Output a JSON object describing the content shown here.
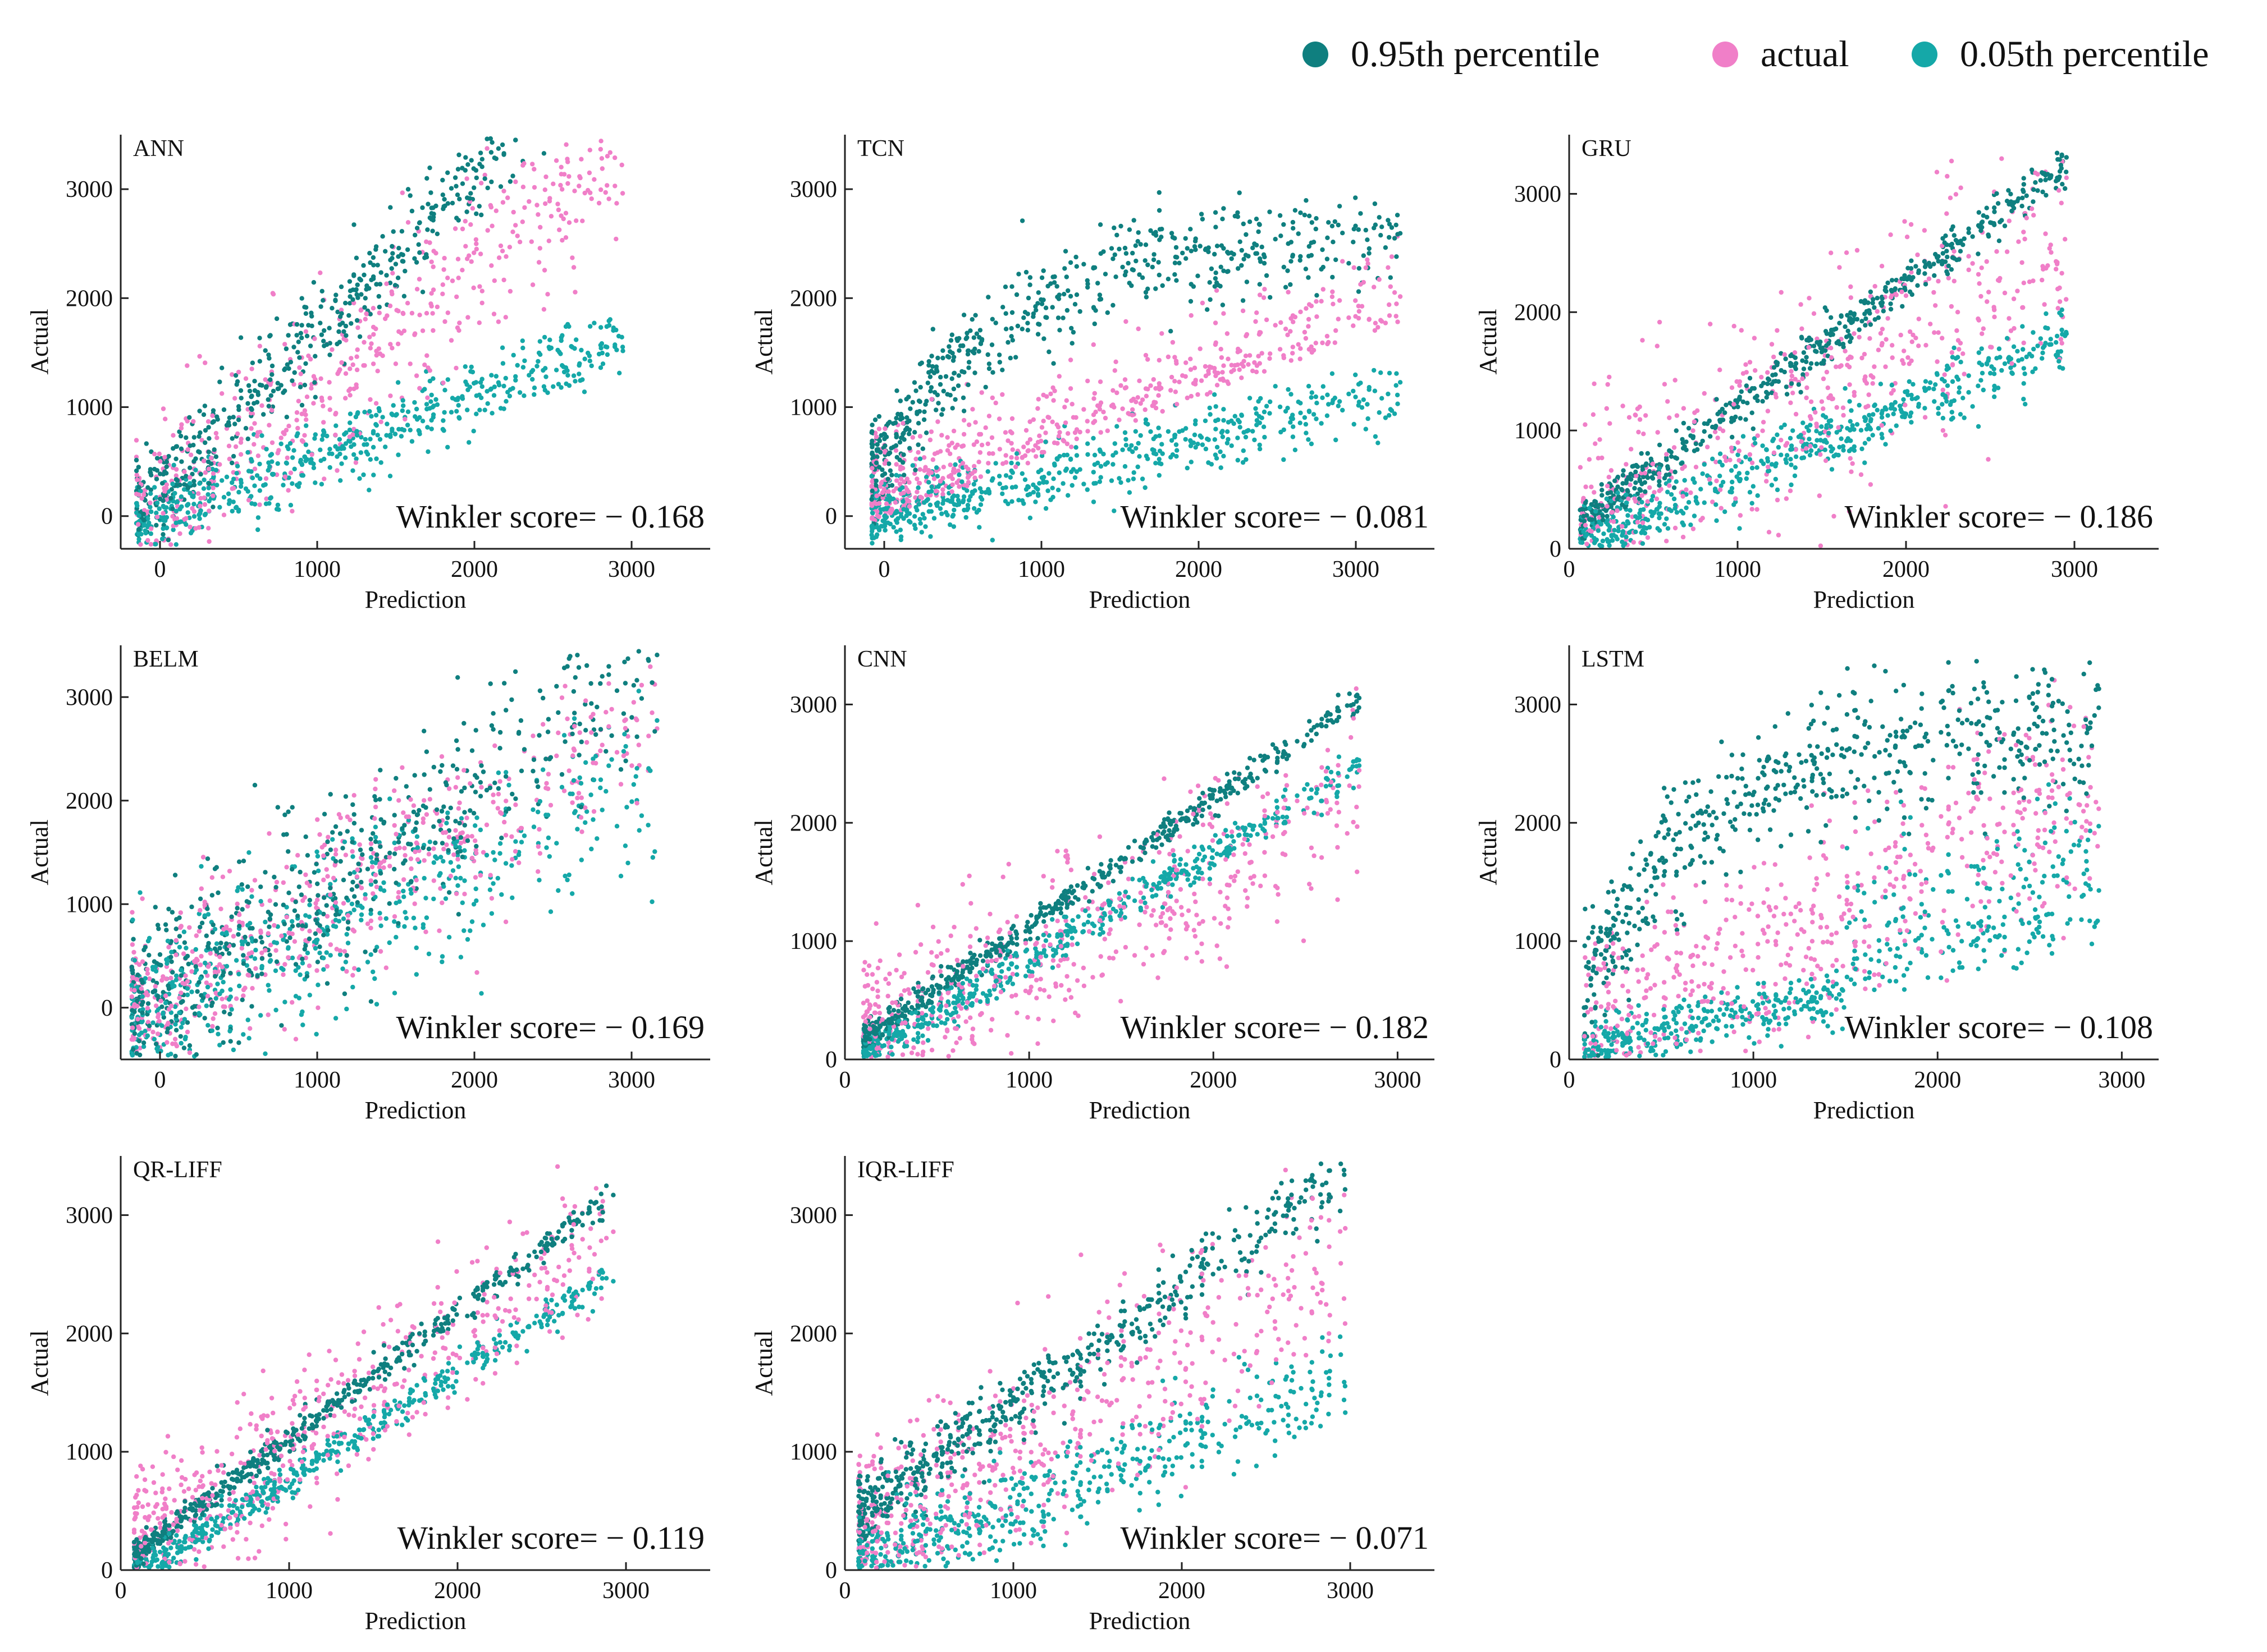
{
  "legend": {
    "items": [
      {
        "label": "0.95th percentile",
        "color": "#0f7f7f"
      },
      {
        "label": "actual",
        "color": "#f07fc8"
      },
      {
        "label": "0.05th percentile",
        "color": "#15a8a8"
      }
    ]
  },
  "chart_data": [
    {
      "type": "scatter",
      "title": "ANN",
      "xlabel": "Prediction",
      "ylabel": "Actual",
      "xlim": [
        -250,
        3500
      ],
      "ylim": [
        -300,
        3500
      ],
      "xticks": [
        0,
        1000,
        2000,
        3000
      ],
      "yticks": [
        0,
        1000,
        2000,
        3000
      ],
      "annotation": "Winkler score= − 0.168",
      "winkler_score": -0.168
    },
    {
      "type": "scatter",
      "title": "TCN",
      "xlabel": "Prediction",
      "ylabel": "Actual",
      "xlim": [
        -250,
        3500
      ],
      "ylim": [
        -300,
        3500
      ],
      "xticks": [
        0,
        1000,
        2000,
        3000
      ],
      "yticks": [
        0,
        1000,
        2000,
        3000
      ],
      "annotation": "Winkler score= − 0.081",
      "winkler_score": -0.081
    },
    {
      "type": "scatter",
      "title": "GRU",
      "xlabel": "Prediction",
      "ylabel": "Actual",
      "xlim": [
        0,
        3500
      ],
      "ylim": [
        0,
        3500
      ],
      "xticks": [
        0,
        1000,
        2000,
        3000
      ],
      "yticks": [
        0,
        1000,
        2000,
        3000
      ],
      "annotation": "Winkler score= − 0.186",
      "winkler_score": -0.186
    },
    {
      "type": "scatter",
      "title": "BELM",
      "xlabel": "Prediction",
      "ylabel": "Actual",
      "xlim": [
        -250,
        3500
      ],
      "ylim": [
        -500,
        3500
      ],
      "xticks": [
        0,
        1000,
        2000,
        3000
      ],
      "yticks": [
        0,
        1000,
        2000,
        3000
      ],
      "annotation": "Winkler score= − 0.169",
      "winkler_score": -0.169
    },
    {
      "type": "scatter",
      "title": "CNN",
      "xlabel": "Prediction",
      "ylabel": "Actual",
      "xlim": [
        0,
        3200
      ],
      "ylim": [
        0,
        3500
      ],
      "xticks": [
        0,
        1000,
        2000,
        3000
      ],
      "yticks": [
        0,
        1000,
        2000,
        3000
      ],
      "annotation": "Winkler score= − 0.182",
      "winkler_score": -0.182
    },
    {
      "type": "scatter",
      "title": "LSTM",
      "xlabel": "Prediction",
      "ylabel": "Actual",
      "xlim": [
        0,
        3200
      ],
      "ylim": [
        0,
        3500
      ],
      "xticks": [
        0,
        1000,
        2000,
        3000
      ],
      "yticks": [
        0,
        1000,
        2000,
        3000
      ],
      "annotation": "Winkler score= − 0.108",
      "winkler_score": -0.108
    },
    {
      "type": "scatter",
      "title": "QR-LIFF",
      "xlabel": "Prediction",
      "ylabel": "Actual",
      "xlim": [
        0,
        3500
      ],
      "ylim": [
        0,
        3500
      ],
      "xticks": [
        0,
        1000,
        2000,
        3000
      ],
      "yticks": [
        0,
        1000,
        2000,
        3000
      ],
      "annotation": "Winkler score= − 0.119",
      "winkler_score": -0.119
    },
    {
      "type": "scatter",
      "title": "IQR-LIFF",
      "xlabel": "Prediction",
      "ylabel": "Actual",
      "xlim": [
        0,
        3500
      ],
      "ylim": [
        0,
        3500
      ],
      "xticks": [
        0,
        1000,
        2000,
        3000
      ],
      "yticks": [
        0,
        1000,
        2000,
        3000
      ],
      "annotation": "Winkler score= − 0.071",
      "winkler_score": -0.071
    }
  ]
}
